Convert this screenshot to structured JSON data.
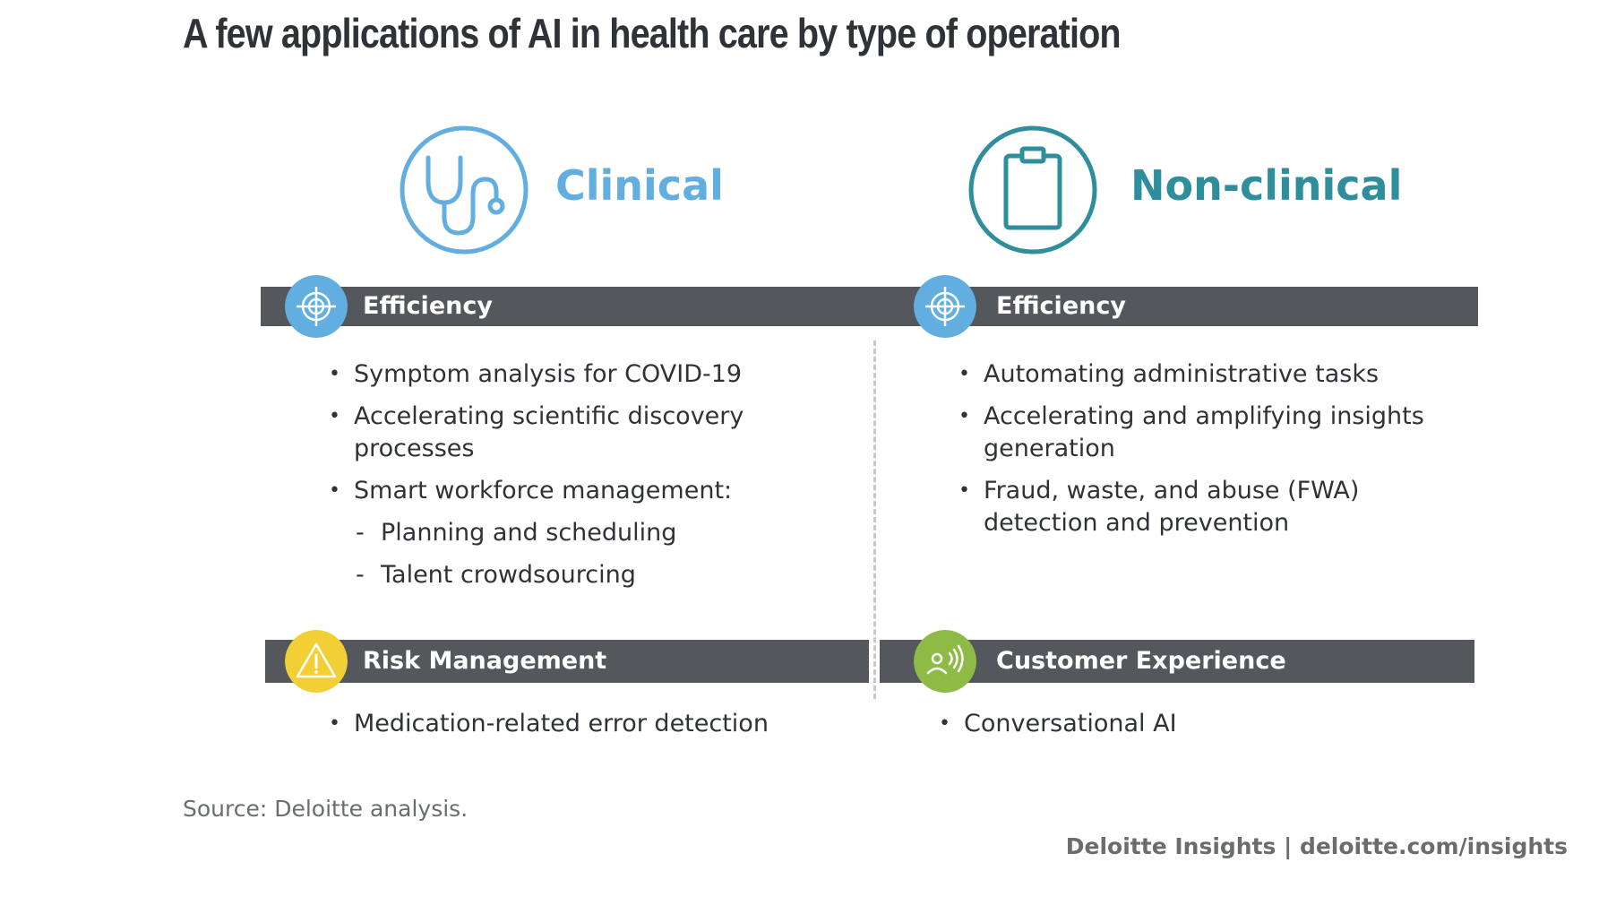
{
  "title": "A few applications of AI in health care by type of operation",
  "colors": {
    "clinical": "#62aee0",
    "nonclinical": "#2e8e9c",
    "bar": "#54575b",
    "risk": "#f2d035",
    "customer": "#8dbb45"
  },
  "clinical": {
    "heading": "Clinical",
    "icon": "stethoscope-icon",
    "efficiency": {
      "label": "Efficiency",
      "icon": "target-icon",
      "items": [
        "Symptom analysis for COVID-19",
        "Accelerating scientific discovery processes",
        "Smart workforce management:"
      ],
      "subitems": [
        "Planning and scheduling",
        "Talent crowdsourcing"
      ]
    },
    "risk": {
      "label": "Risk Management",
      "icon": "warning-icon",
      "items": [
        "Medication-related error detection"
      ]
    }
  },
  "nonclinical": {
    "heading": "Non-clinical",
    "icon": "clipboard-icon",
    "efficiency": {
      "label": "Efficiency",
      "icon": "target-icon",
      "items": [
        "Automating administrative tasks",
        "Accelerating and amplifying insights generation",
        "Fraud, waste, and abuse (FWA) detection and prevention"
      ]
    },
    "customer": {
      "label": "Customer Experience",
      "icon": "voice-assistant-icon",
      "items": [
        "Conversational AI"
      ]
    }
  },
  "source": "Source: Deloitte analysis.",
  "credit": "Deloitte Insights | deloitte.com/insights"
}
